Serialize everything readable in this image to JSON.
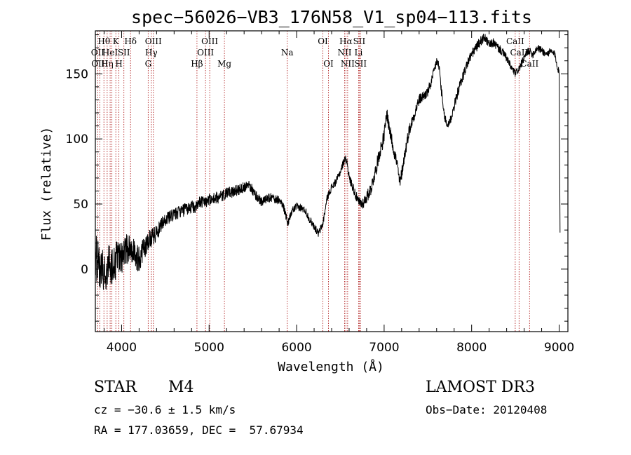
{
  "chart_data": {
    "type": "line",
    "title": "spec−56026−VB3_176N58_V1_sp04−113.fits",
    "xlabel": "Wavelength (Å)",
    "ylabel": "Flux (relative)",
    "xlim": [
      3700,
      9100
    ],
    "ylim": [
      -48,
      183
    ],
    "xticks": [
      4000,
      5000,
      6000,
      7000,
      8000,
      9000
    ],
    "yticks": [
      0,
      50,
      100,
      150
    ],
    "series": [
      {
        "name": "spectrum",
        "anchors": [
          [
            3700,
            10
          ],
          [
            3730,
            5
          ],
          [
            3760,
            2
          ],
          [
            3790,
            0
          ],
          [
            3820,
            -5
          ],
          [
            3860,
            5
          ],
          [
            3900,
            3
          ],
          [
            3950,
            8
          ],
          [
            4000,
            8
          ],
          [
            4050,
            15
          ],
          [
            4100,
            18
          ],
          [
            4150,
            12
          ],
          [
            4200,
            7
          ],
          [
            4250,
            15
          ],
          [
            4300,
            22
          ],
          [
            4350,
            25
          ],
          [
            4400,
            28
          ],
          [
            4450,
            34
          ],
          [
            4500,
            38
          ],
          [
            4600,
            42
          ],
          [
            4700,
            45
          ],
          [
            4800,
            48
          ],
          [
            4850,
            47
          ],
          [
            4900,
            52
          ],
          [
            5000,
            53
          ],
          [
            5100,
            55
          ],
          [
            5150,
            56
          ],
          [
            5200,
            58
          ],
          [
            5300,
            60
          ],
          [
            5400,
            63
          ],
          [
            5450,
            66
          ],
          [
            5500,
            60
          ],
          [
            5550,
            55
          ],
          [
            5600,
            52
          ],
          [
            5700,
            55
          ],
          [
            5800,
            53
          ],
          [
            5850,
            48
          ],
          [
            5900,
            35
          ],
          [
            5950,
            45
          ],
          [
            6000,
            48
          ],
          [
            6050,
            47
          ],
          [
            6100,
            45
          ],
          [
            6150,
            38
          ],
          [
            6200,
            33
          ],
          [
            6250,
            27
          ],
          [
            6300,
            35
          ],
          [
            6350,
            55
          ],
          [
            6400,
            63
          ],
          [
            6450,
            67
          ],
          [
            6500,
            75
          ],
          [
            6550,
            85
          ],
          [
            6580,
            82
          ],
          [
            6600,
            70
          ],
          [
            6650,
            62
          ],
          [
            6700,
            52
          ],
          [
            6750,
            50
          ],
          [
            6800,
            55
          ],
          [
            6850,
            62
          ],
          [
            6900,
            75
          ],
          [
            6950,
            90
          ],
          [
            7000,
            102
          ],
          [
            7030,
            120
          ],
          [
            7060,
            108
          ],
          [
            7100,
            95
          ],
          [
            7150,
            80
          ],
          [
            7180,
            65
          ],
          [
            7220,
            82
          ],
          [
            7280,
            105
          ],
          [
            7350,
            120
          ],
          [
            7400,
            130
          ],
          [
            7450,
            133
          ],
          [
            7500,
            136
          ],
          [
            7550,
            146
          ],
          [
            7600,
            160
          ],
          [
            7630,
            155
          ],
          [
            7650,
            140
          ],
          [
            7680,
            120
          ],
          [
            7720,
            110
          ],
          [
            7760,
            115
          ],
          [
            7800,
            125
          ],
          [
            7850,
            138
          ],
          [
            7900,
            148
          ],
          [
            7950,
            158
          ],
          [
            8000,
            165
          ],
          [
            8050,
            170
          ],
          [
            8100,
            175
          ],
          [
            8150,
            178
          ],
          [
            8200,
            172
          ],
          [
            8250,
            174
          ],
          [
            8300,
            170
          ],
          [
            8350,
            167
          ],
          [
            8400,
            162
          ],
          [
            8450,
            155
          ],
          [
            8500,
            150
          ],
          [
            8550,
            155
          ],
          [
            8600,
            162
          ],
          [
            8650,
            168
          ],
          [
            8700,
            165
          ],
          [
            8750,
            170
          ],
          [
            8800,
            168
          ],
          [
            8850,
            165
          ],
          [
            8900,
            167
          ],
          [
            8950,
            165
          ],
          [
            9000,
            150
          ],
          [
            9010,
            30
          ]
        ],
        "noise": [
          [
            3700,
            18
          ],
          [
            3900,
            15
          ],
          [
            4100,
            12
          ],
          [
            4300,
            8
          ],
          [
            4500,
            5
          ],
          [
            5000,
            5
          ],
          [
            5500,
            4
          ],
          [
            5900,
            3
          ],
          [
            6500,
            3
          ],
          [
            7000,
            6
          ],
          [
            7500,
            4
          ],
          [
            8000,
            4
          ],
          [
            8500,
            3
          ],
          [
            9000,
            3
          ]
        ]
      }
    ],
    "line_markers": [
      {
        "wl": 3727,
        "label": "OII",
        "row": 1
      },
      {
        "wl": 3750,
        "label": "OIII",
        "row": 2
      },
      {
        "wl": 3798,
        "label": "Hθ",
        "row": 0
      },
      {
        "wl": 3835,
        "label": "Hη",
        "row": 2
      },
      {
        "wl": 3869,
        "label": "HeI",
        "row": 1
      },
      {
        "wl": 3889,
        "label": "",
        "row": 2
      },
      {
        "wl": 3934,
        "label": "K",
        "row": 0
      },
      {
        "wl": 3969,
        "label": "H",
        "row": 2
      },
      {
        "wl": 4026,
        "label": "SII",
        "row": 1
      },
      {
        "wl": 4102,
        "label": "Hδ",
        "row": 0
      },
      {
        "wl": 4304,
        "label": "G",
        "row": 2
      },
      {
        "wl": 4340,
        "label": "Hγ",
        "row": 1
      },
      {
        "wl": 4363,
        "label": "OIII",
        "row": 0
      },
      {
        "wl": 4861,
        "label": "Hβ",
        "row": 2
      },
      {
        "wl": 4959,
        "label": "OIII",
        "row": 1
      },
      {
        "wl": 5007,
        "label": "OIII",
        "row": 0
      },
      {
        "wl": 5175,
        "label": "Mg",
        "row": 2
      },
      {
        "wl": 5893,
        "label": "Na",
        "row": 1
      },
      {
        "wl": 6300,
        "label": "OI",
        "row": 0
      },
      {
        "wl": 6364,
        "label": "OI",
        "row": 2
      },
      {
        "wl": 6548,
        "label": "NII",
        "row": 1
      },
      {
        "wl": 6563,
        "label": "Hα",
        "row": 0
      },
      {
        "wl": 6583,
        "label": "NII",
        "row": 2
      },
      {
        "wl": 6708,
        "label": "Li",
        "row": 1
      },
      {
        "wl": 6716,
        "label": "SII",
        "row": 0
      },
      {
        "wl": 6731,
        "label": "SII",
        "row": 2
      },
      {
        "wl": 8498,
        "label": "CaII",
        "row": 0
      },
      {
        "wl": 8542,
        "label": "CaII",
        "row": 1
      },
      {
        "wl": 8662,
        "label": "CaII",
        "row": 2
      }
    ]
  },
  "info": {
    "class": "STAR",
    "subclass": "M4",
    "survey": "LAMOST DR3",
    "cz": "cz = −30.6 ± 1.5 km/s",
    "obs_date": "Obs−Date: 20120408",
    "radec": "RA = 177.03659, DEC =  57.67934"
  }
}
